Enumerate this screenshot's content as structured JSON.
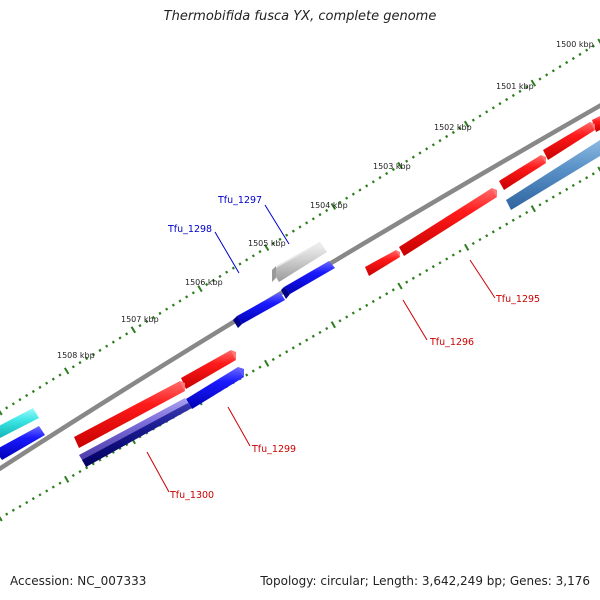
{
  "title": "Thermobifida fusca YX, complete genome",
  "footer": {
    "accession": "Accession: NC_007333",
    "stats": "Topology: circular; Length: 3,642,249 bp; Genes: 3,176"
  },
  "colors": {
    "backbone": "#888888",
    "ticks": "#2e7d1f",
    "label_forward": "#cc0000",
    "label_reverse": "#0000cc"
  },
  "tick_labels": [
    "1500 kbp",
    "1501 kbp",
    "1502 kbp",
    "1503 kbp",
    "1504 kbp",
    "1505 kbp",
    "1506 kbp",
    "1507 kbp",
    "1508 kbp"
  ],
  "gene_labels": [
    {
      "text": "Tfu_1295",
      "strand": "forward"
    },
    {
      "text": "Tfu_1296",
      "strand": "forward"
    },
    {
      "text": "Tfu_1297",
      "strand": "reverse"
    },
    {
      "text": "Tfu_1298",
      "strand": "reverse"
    },
    {
      "text": "Tfu_1299",
      "strand": "forward"
    },
    {
      "text": "Tfu_1300",
      "strand": "forward"
    }
  ],
  "features": [
    {
      "kind": "gene",
      "color": "red",
      "hex": "#ee1111"
    },
    {
      "kind": "gene",
      "color": "blue",
      "hex": "#1111ee"
    },
    {
      "kind": "gene",
      "color": "gray",
      "hex": "#bbbbbb"
    },
    {
      "kind": "gene",
      "color": "cyan",
      "hex": "#22dddd"
    },
    {
      "kind": "gene",
      "color": "steel-blue",
      "hex": "#4a86c0"
    },
    {
      "kind": "gene",
      "color": "slate-blue",
      "hex": "#6a5acd"
    },
    {
      "kind": "gene",
      "color": "navy",
      "hex": "#101080"
    }
  ]
}
